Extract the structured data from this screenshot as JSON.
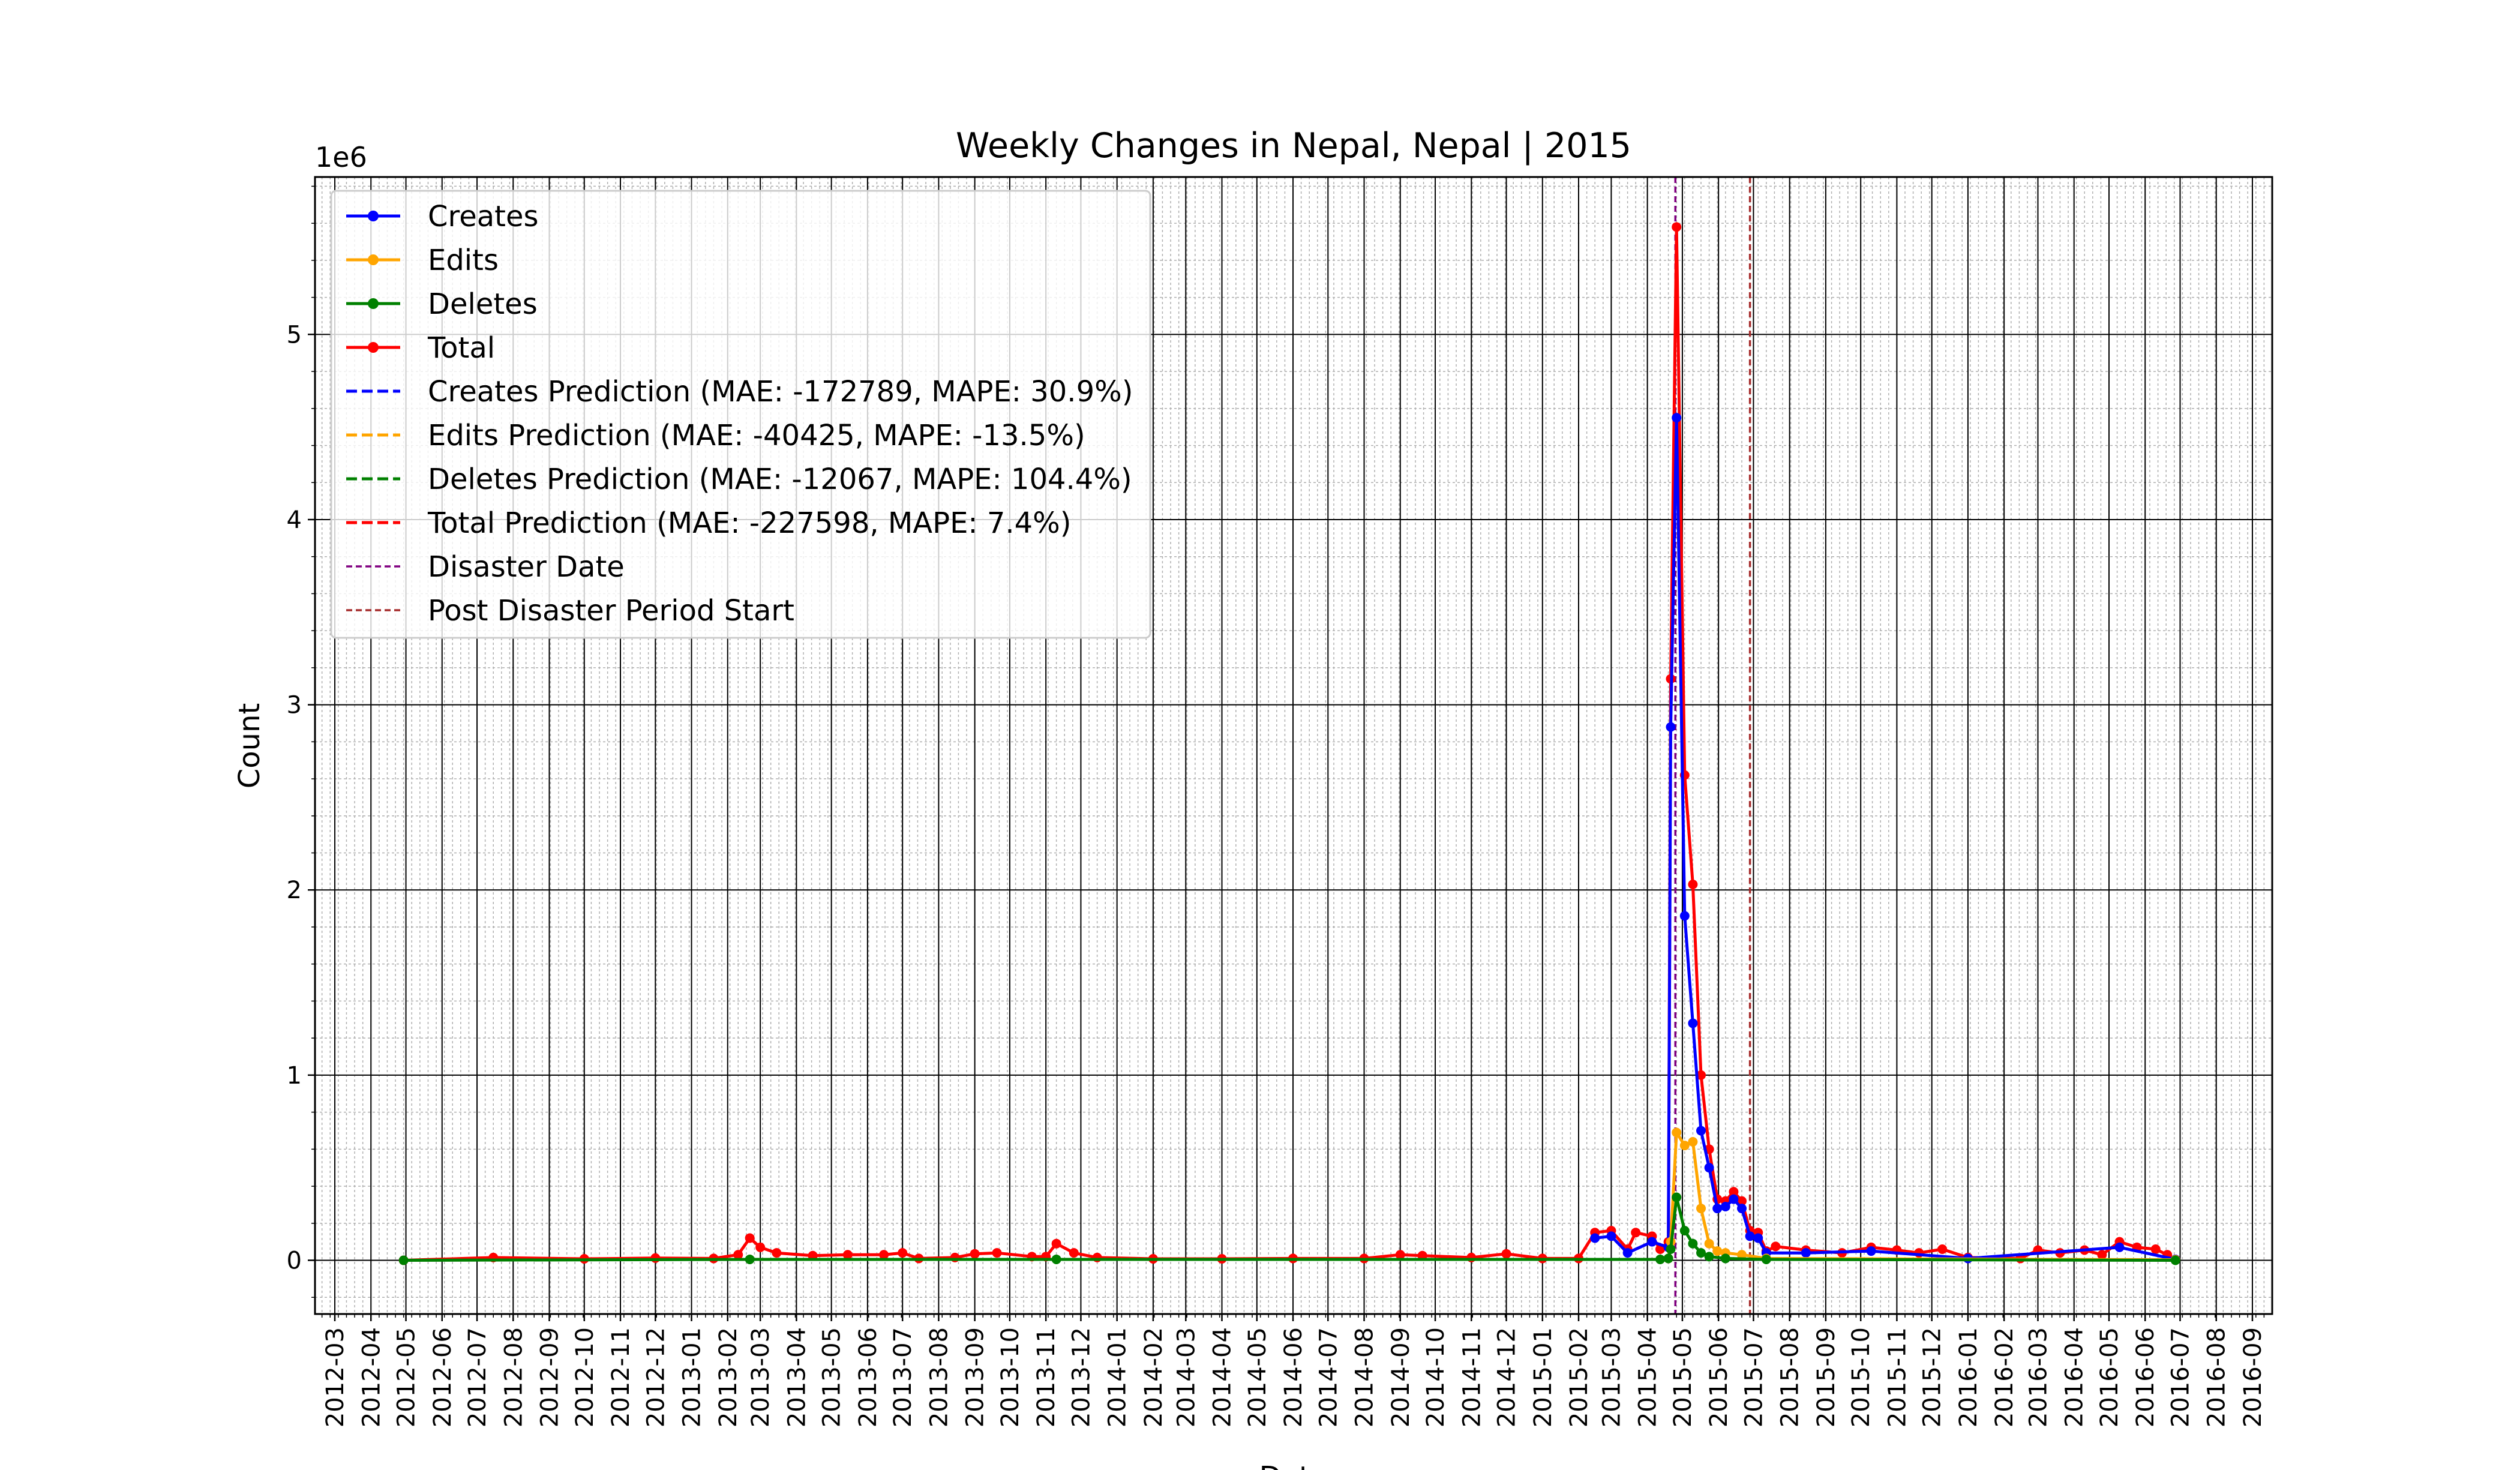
{
  "chart_data": {
    "type": "line",
    "title": "Weekly Changes in Nepal, Nepal | 2015",
    "xlabel": "Date",
    "ylabel": "Count",
    "y_offset_label": "1e6",
    "ylim": [
      -290000,
      5850000
    ],
    "xlim": [
      "2012-02-13",
      "2016-09-18"
    ],
    "y_ticks": [
      0,
      1000000,
      2000000,
      3000000,
      4000000,
      5000000
    ],
    "y_tick_labels": [
      "0",
      "1",
      "2",
      "3",
      "4",
      "5"
    ],
    "x_tick_labels": [
      "2012-03",
      "2012-04",
      "2012-05",
      "2012-06",
      "2012-07",
      "2012-08",
      "2012-09",
      "2012-10",
      "2012-11",
      "2012-12",
      "2013-01",
      "2013-02",
      "2013-03",
      "2013-04",
      "2013-05",
      "2013-06",
      "2013-07",
      "2013-08",
      "2013-09",
      "2013-10",
      "2013-11",
      "2013-12",
      "2014-01",
      "2014-02",
      "2014-03",
      "2014-04",
      "2014-05",
      "2014-06",
      "2014-07",
      "2014-08",
      "2014-09",
      "2014-10",
      "2014-11",
      "2014-12",
      "2015-01",
      "2015-02",
      "2015-03",
      "2015-04",
      "2015-05",
      "2015-06",
      "2015-07",
      "2015-08",
      "2015-09",
      "2015-10",
      "2015-11",
      "2015-12",
      "2016-01",
      "2016-02",
      "2016-03",
      "2016-04",
      "2016-05",
      "2016-06",
      "2016-07",
      "2016-08",
      "2016-09"
    ],
    "grid": true,
    "legend_position": "top-left",
    "colors": {
      "Creates": "#0000ff",
      "Edits": "#ffa500",
      "Deletes": "#008000",
      "Total": "#ff0000",
      "Disaster Date": "#800080",
      "Post Disaster Period Start": "#a52a2a"
    },
    "legend": [
      {
        "label": "Creates",
        "color": "#0000ff",
        "style": "solid-marker"
      },
      {
        "label": "Edits",
        "color": "#ffa500",
        "style": "solid-marker"
      },
      {
        "label": "Deletes",
        "color": "#008000",
        "style": "solid-marker"
      },
      {
        "label": "Total",
        "color": "#ff0000",
        "style": "solid-marker"
      },
      {
        "label": "Creates Prediction (MAE: -172789, MAPE: 30.9%)",
        "color": "#0000ff",
        "style": "dashed"
      },
      {
        "label": "Edits Prediction (MAE: -40425, MAPE: -13.5%)",
        "color": "#ffa500",
        "style": "dashed"
      },
      {
        "label": "Deletes Prediction (MAE: -12067, MAPE: 104.4%)",
        "color": "#008000",
        "style": "dashed"
      },
      {
        "label": "Total Prediction (MAE: -227598, MAPE: 7.4%)",
        "color": "#ff0000",
        "style": "dashed"
      },
      {
        "label": "Disaster Date",
        "color": "#800080",
        "style": "dashed-thin"
      },
      {
        "label": "Post Disaster Period Start",
        "color": "#a52a2a",
        "style": "dashed-thin"
      }
    ],
    "vlines": [
      {
        "name": "Disaster Date",
        "date": "2015-04-25",
        "color": "#800080"
      },
      {
        "name": "Post Disaster Period Start",
        "date": "2015-06-28",
        "color": "#a52a2a"
      }
    ],
    "series": [
      {
        "name": "Total",
        "color": "#ff0000",
        "points": [
          [
            "2012-04-29",
            0
          ],
          [
            "2012-07-15",
            15000
          ],
          [
            "2012-10-01",
            8000
          ],
          [
            "2012-12-01",
            12000
          ],
          [
            "2013-01-20",
            10000
          ],
          [
            "2013-02-10",
            30000
          ],
          [
            "2013-02-20",
            120000
          ],
          [
            "2013-03-01",
            70000
          ],
          [
            "2013-03-15",
            40000
          ],
          [
            "2013-04-15",
            25000
          ],
          [
            "2013-05-15",
            30000
          ],
          [
            "2013-06-15",
            30000
          ],
          [
            "2013-07-01",
            40000
          ],
          [
            "2013-07-15",
            10000
          ],
          [
            "2013-08-15",
            15000
          ],
          [
            "2013-09-01",
            35000
          ],
          [
            "2013-09-20",
            40000
          ],
          [
            "2013-10-20",
            20000
          ],
          [
            "2013-11-01",
            20000
          ],
          [
            "2013-11-10",
            90000
          ],
          [
            "2013-11-25",
            40000
          ],
          [
            "2013-12-15",
            15000
          ],
          [
            "2014-02-01",
            8000
          ],
          [
            "2014-04-01",
            8000
          ],
          [
            "2014-06-01",
            10000
          ],
          [
            "2014-08-01",
            10000
          ],
          [
            "2014-09-01",
            30000
          ],
          [
            "2014-09-20",
            25000
          ],
          [
            "2014-11-01",
            15000
          ],
          [
            "2014-12-01",
            35000
          ],
          [
            "2015-01-01",
            10000
          ],
          [
            "2015-02-01",
            10000
          ],
          [
            "2015-02-15",
            150000
          ],
          [
            "2015-03-01",
            160000
          ],
          [
            "2015-03-15",
            60000
          ],
          [
            "2015-03-22",
            150000
          ],
          [
            "2015-04-05",
            130000
          ],
          [
            "2015-04-12",
            60000
          ],
          [
            "2015-04-19",
            100000
          ],
          [
            "2015-04-21",
            3140000
          ],
          [
            "2015-04-26",
            5580000
          ],
          [
            "2015-05-03",
            2620000
          ],
          [
            "2015-05-10",
            2030000
          ],
          [
            "2015-05-17",
            1000000
          ],
          [
            "2015-05-24",
            600000
          ],
          [
            "2015-05-31",
            330000
          ],
          [
            "2015-06-07",
            320000
          ],
          [
            "2015-06-14",
            370000
          ],
          [
            "2015-06-21",
            320000
          ],
          [
            "2015-06-28",
            160000
          ],
          [
            "2015-07-05",
            150000
          ],
          [
            "2015-07-12",
            50000
          ],
          [
            "2015-07-20",
            75000
          ],
          [
            "2015-08-15",
            55000
          ],
          [
            "2015-09-15",
            40000
          ],
          [
            "2015-10-10",
            70000
          ],
          [
            "2015-11-01",
            55000
          ],
          [
            "2015-11-20",
            40000
          ],
          [
            "2015-12-10",
            60000
          ],
          [
            "2016-01-01",
            15000
          ],
          [
            "2016-02-15",
            10000
          ],
          [
            "2016-03-01",
            55000
          ],
          [
            "2016-03-20",
            40000
          ],
          [
            "2016-04-10",
            55000
          ],
          [
            "2016-04-25",
            30000
          ],
          [
            "2016-05-10",
            100000
          ],
          [
            "2016-05-25",
            70000
          ],
          [
            "2016-06-10",
            60000
          ],
          [
            "2016-06-20",
            30000
          ],
          [
            "2016-06-27",
            5000
          ]
        ]
      },
      {
        "name": "Creates",
        "color": "#0000ff",
        "points": [
          [
            "2015-02-15",
            120000
          ],
          [
            "2015-03-01",
            130000
          ],
          [
            "2015-03-15",
            40000
          ],
          [
            "2015-04-05",
            100000
          ],
          [
            "2015-04-19",
            70000
          ],
          [
            "2015-04-21",
            2880000
          ],
          [
            "2015-04-26",
            4550000
          ],
          [
            "2015-05-03",
            1860000
          ],
          [
            "2015-05-10",
            1280000
          ],
          [
            "2015-05-17",
            700000
          ],
          [
            "2015-05-24",
            500000
          ],
          [
            "2015-05-31",
            280000
          ],
          [
            "2015-06-07",
            290000
          ],
          [
            "2015-06-14",
            330000
          ],
          [
            "2015-06-21",
            280000
          ],
          [
            "2015-06-28",
            130000
          ],
          [
            "2015-07-05",
            120000
          ],
          [
            "2015-07-12",
            40000
          ],
          [
            "2015-08-15",
            40000
          ],
          [
            "2015-10-10",
            50000
          ],
          [
            "2016-01-01",
            10000
          ],
          [
            "2016-05-10",
            70000
          ],
          [
            "2016-06-27",
            5000
          ]
        ]
      },
      {
        "name": "Edits",
        "color": "#ffa500",
        "points": [
          [
            "2015-04-19",
            10000
          ],
          [
            "2015-04-21",
            100000
          ],
          [
            "2015-04-26",
            690000
          ],
          [
            "2015-05-03",
            620000
          ],
          [
            "2015-05-10",
            640000
          ],
          [
            "2015-05-17",
            280000
          ],
          [
            "2015-05-24",
            90000
          ],
          [
            "2015-05-31",
            50000
          ],
          [
            "2015-06-07",
            40000
          ],
          [
            "2015-06-21",
            30000
          ],
          [
            "2015-07-12",
            10000
          ],
          [
            "2016-06-27",
            3000
          ]
        ]
      },
      {
        "name": "Deletes",
        "color": "#008000",
        "points": [
          [
            "2012-04-29",
            0
          ],
          [
            "2013-02-20",
            5000
          ],
          [
            "2013-11-10",
            5000
          ],
          [
            "2015-04-12",
            5000
          ],
          [
            "2015-04-19",
            10000
          ],
          [
            "2015-04-21",
            60000
          ],
          [
            "2015-04-26",
            340000
          ],
          [
            "2015-05-03",
            160000
          ],
          [
            "2015-05-10",
            90000
          ],
          [
            "2015-05-17",
            40000
          ],
          [
            "2015-05-24",
            20000
          ],
          [
            "2015-06-07",
            10000
          ],
          [
            "2015-07-12",
            5000
          ],
          [
            "2016-06-27",
            0
          ]
        ]
      }
    ]
  }
}
